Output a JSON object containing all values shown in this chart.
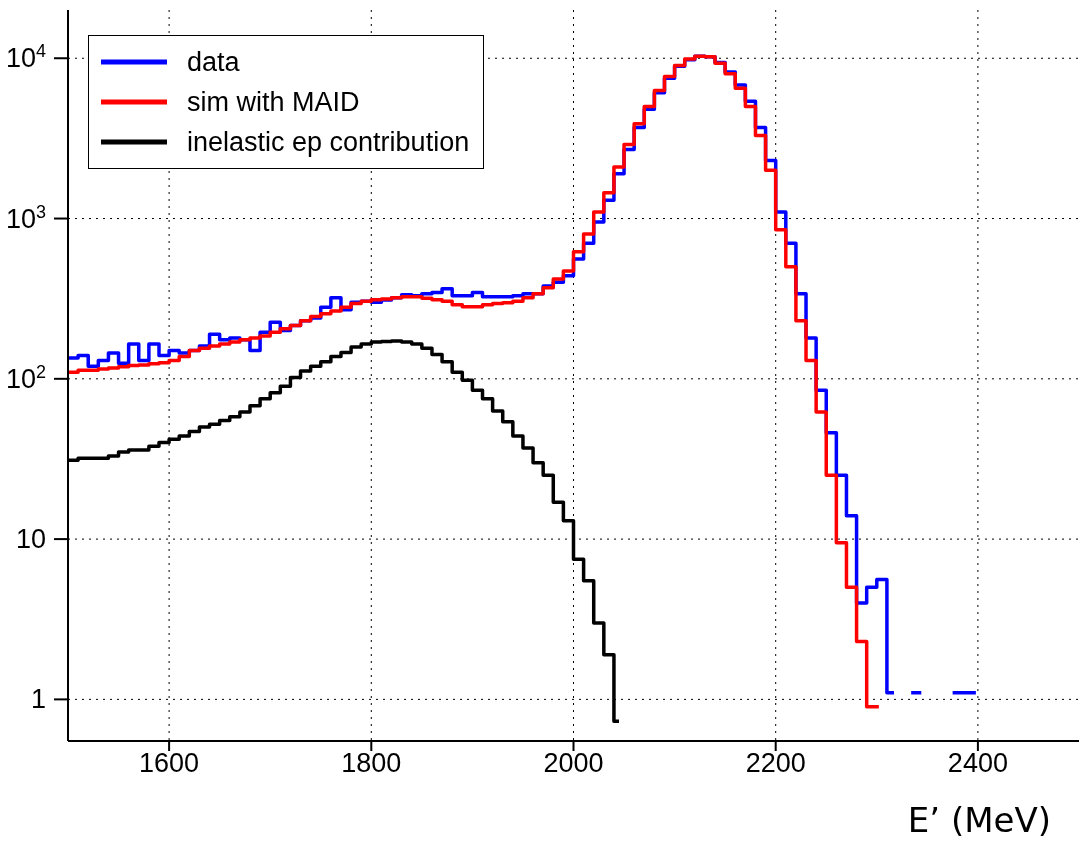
{
  "chart_data": {
    "type": "step",
    "xlabel": "E’ (MeV)",
    "xlim": [
      1500,
      2500
    ],
    "xticks": [
      1600,
      1800,
      2000,
      2200,
      2400
    ],
    "log": true,
    "ylim": [
      0.55,
      20000
    ],
    "yticks": [
      {
        "value": 1,
        "label": "1"
      },
      {
        "value": 10,
        "label": "10"
      },
      {
        "value": 100,
        "label": "10$^{2}$"
      },
      {
        "value": 1000,
        "label": "10$^{3}$"
      },
      {
        "value": 10000,
        "label": "10$^{4}$"
      }
    ],
    "grid": true,
    "legend": "top left",
    "line_style": "solid",
    "marker": "none",
    "series": [
      {
        "name": "data",
        "color": "#0000ff",
        "x": [
          1500,
          1510,
          1520,
          1530,
          1540,
          1550,
          1560,
          1570,
          1580,
          1590,
          1600,
          1610,
          1620,
          1630,
          1640,
          1650,
          1660,
          1670,
          1680,
          1690,
          1700,
          1710,
          1720,
          1730,
          1740,
          1750,
          1760,
          1770,
          1780,
          1790,
          1800,
          1810,
          1820,
          1830,
          1840,
          1850,
          1860,
          1870,
          1880,
          1890,
          1900,
          1910,
          1920,
          1930,
          1940,
          1950,
          1960,
          1970,
          1980,
          1990,
          2000,
          2010,
          2020,
          2030,
          2040,
          2050,
          2060,
          2070,
          2080,
          2090,
          2100,
          2110,
          2120,
          2130,
          2140,
          2150,
          2160,
          2170,
          2180,
          2190,
          2200,
          2210,
          2220,
          2230,
          2240,
          2250,
          2260,
          2270,
          2280,
          2290,
          2300,
          2310,
          2317,
          2320,
          2334,
          2344,
          2350,
          2375,
          2398
        ],
        "values": [
          135,
          140,
          120,
          130,
          145,
          125,
          165,
          130,
          165,
          140,
          150,
          145,
          150,
          160,
          190,
          175,
          180,
          175,
          150,
          195,
          225,
          200,
          215,
          230,
          240,
          280,
          320,
          270,
          300,
          305,
          300,
          310,
          320,
          335,
          330,
          340,
          345,
          365,
          330,
          330,
          345,
          325,
          325,
          325,
          330,
          340,
          340,
          380,
          400,
          440,
          560,
          700,
          950,
          1300,
          1900,
          2700,
          3700,
          4800,
          6100,
          7500,
          8900,
          9800,
          10300,
          10200,
          9400,
          8200,
          6800,
          5400,
          3700,
          2300,
          1100,
          700,
          340,
          180,
          85,
          46,
          25,
          14,
          4.0,
          5.0,
          5.6,
          1.1,
          1.1,
          null,
          1.1,
          1.1,
          null,
          1.1,
          1.1
        ]
      },
      {
        "name": "sim with MAID",
        "color": "#ff0000",
        "x": [
          1500,
          1510,
          1520,
          1530,
          1540,
          1550,
          1560,
          1570,
          1580,
          1590,
          1600,
          1610,
          1620,
          1630,
          1640,
          1650,
          1660,
          1670,
          1680,
          1690,
          1700,
          1710,
          1720,
          1730,
          1740,
          1750,
          1760,
          1770,
          1780,
          1790,
          1800,
          1810,
          1820,
          1830,
          1840,
          1850,
          1860,
          1870,
          1880,
          1890,
          1900,
          1910,
          1920,
          1930,
          1940,
          1950,
          1960,
          1970,
          1980,
          1990,
          2000,
          2010,
          2020,
          2030,
          2040,
          2050,
          2060,
          2070,
          2080,
          2090,
          2100,
          2110,
          2120,
          2130,
          2140,
          2150,
          2160,
          2170,
          2180,
          2190,
          2200,
          2210,
          2220,
          2230,
          2240,
          2250,
          2260,
          2270,
          2280,
          2290,
          2302
        ],
        "values": [
          110,
          113,
          113,
          115,
          117,
          119,
          121,
          122,
          124,
          126,
          130,
          138,
          150,
          155,
          160,
          165,
          170,
          175,
          180,
          185,
          195,
          205,
          215,
          230,
          245,
          255,
          265,
          280,
          295,
          305,
          311,
          315,
          320,
          325,
          325,
          318,
          311,
          305,
          290,
          282,
          282,
          290,
          295,
          298,
          305,
          320,
          340,
          370,
          420,
          470,
          620,
          800,
          1100,
          1450,
          2100,
          2900,
          3900,
          5000,
          6300,
          7700,
          9000,
          9900,
          10300,
          10200,
          9300,
          8000,
          6500,
          5000,
          3300,
          2000,
          850,
          500,
          230,
          130,
          62,
          25,
          9.5,
          5,
          2.3,
          0.9,
          0.9
        ]
      },
      {
        "name": "inelastic ep contribution",
        "color": "#000000",
        "x": [
          1500,
          1510,
          1520,
          1530,
          1540,
          1550,
          1560,
          1570,
          1580,
          1590,
          1600,
          1610,
          1620,
          1630,
          1640,
          1650,
          1660,
          1670,
          1680,
          1690,
          1700,
          1710,
          1720,
          1730,
          1740,
          1750,
          1760,
          1770,
          1780,
          1790,
          1800,
          1810,
          1820,
          1830,
          1840,
          1850,
          1860,
          1870,
          1880,
          1890,
          1900,
          1910,
          1920,
          1930,
          1940,
          1950,
          1960,
          1970,
          1980,
          1990,
          2000,
          2010,
          2020,
          2030,
          2040,
          2045
        ],
        "values": [
          31,
          32,
          32,
          32,
          33,
          35,
          36,
          36,
          38,
          40,
          42,
          44,
          47,
          50,
          52,
          55,
          58,
          62,
          68,
          75,
          82,
          90,
          102,
          112,
          120,
          128,
          138,
          146,
          158,
          165,
          170,
          171,
          172,
          170,
          165,
          155,
          142,
          128,
          110,
          98,
          85,
          75,
          63,
          54,
          44,
          37,
          30,
          25,
          17,
          13,
          7.5,
          5.5,
          3.0,
          1.9,
          0.73,
          0.73
        ]
      }
    ]
  }
}
